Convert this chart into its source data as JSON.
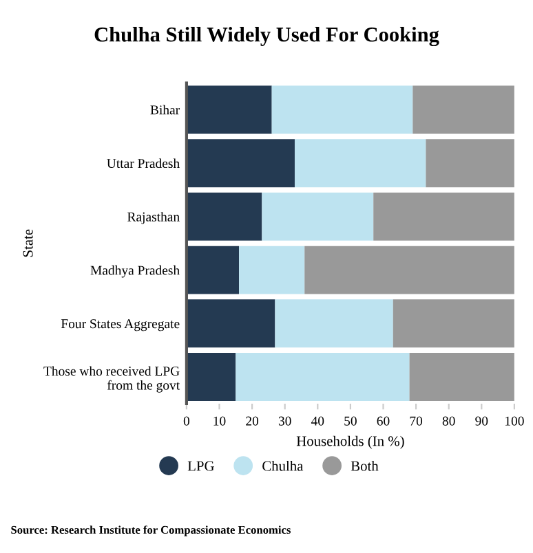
{
  "chart_data": {
    "type": "bar",
    "orientation": "horizontal",
    "stacked": true,
    "title": "Chulha Still Widely Used For Cooking",
    "categories": [
      "Bihar",
      "Uttar Pradesh",
      "Rajasthan",
      "Madhya Pradesh",
      "Four States Aggregate",
      "Those who received LPG\nfrom the govt"
    ],
    "series": [
      {
        "name": "LPG",
        "color": "#243a52",
        "values": [
          26,
          33,
          23,
          16,
          27,
          15
        ]
      },
      {
        "name": "Chulha",
        "color": "#bde3f0",
        "values": [
          43,
          40,
          34,
          20,
          36,
          53
        ]
      },
      {
        "name": "Both",
        "color": "#999999",
        "values": [
          31,
          27,
          43,
          64,
          37,
          32
        ]
      }
    ],
    "xlim": [
      0,
      100
    ],
    "xticks": [
      0,
      10,
      20,
      30,
      40,
      50,
      60,
      70,
      80,
      90,
      100
    ],
    "xlabel": "Households (In %)",
    "ylabel": "State",
    "legend": "bottom",
    "grid": false,
    "annotations": [
      "Source: Research Institute for Compassionate Economics"
    ]
  }
}
